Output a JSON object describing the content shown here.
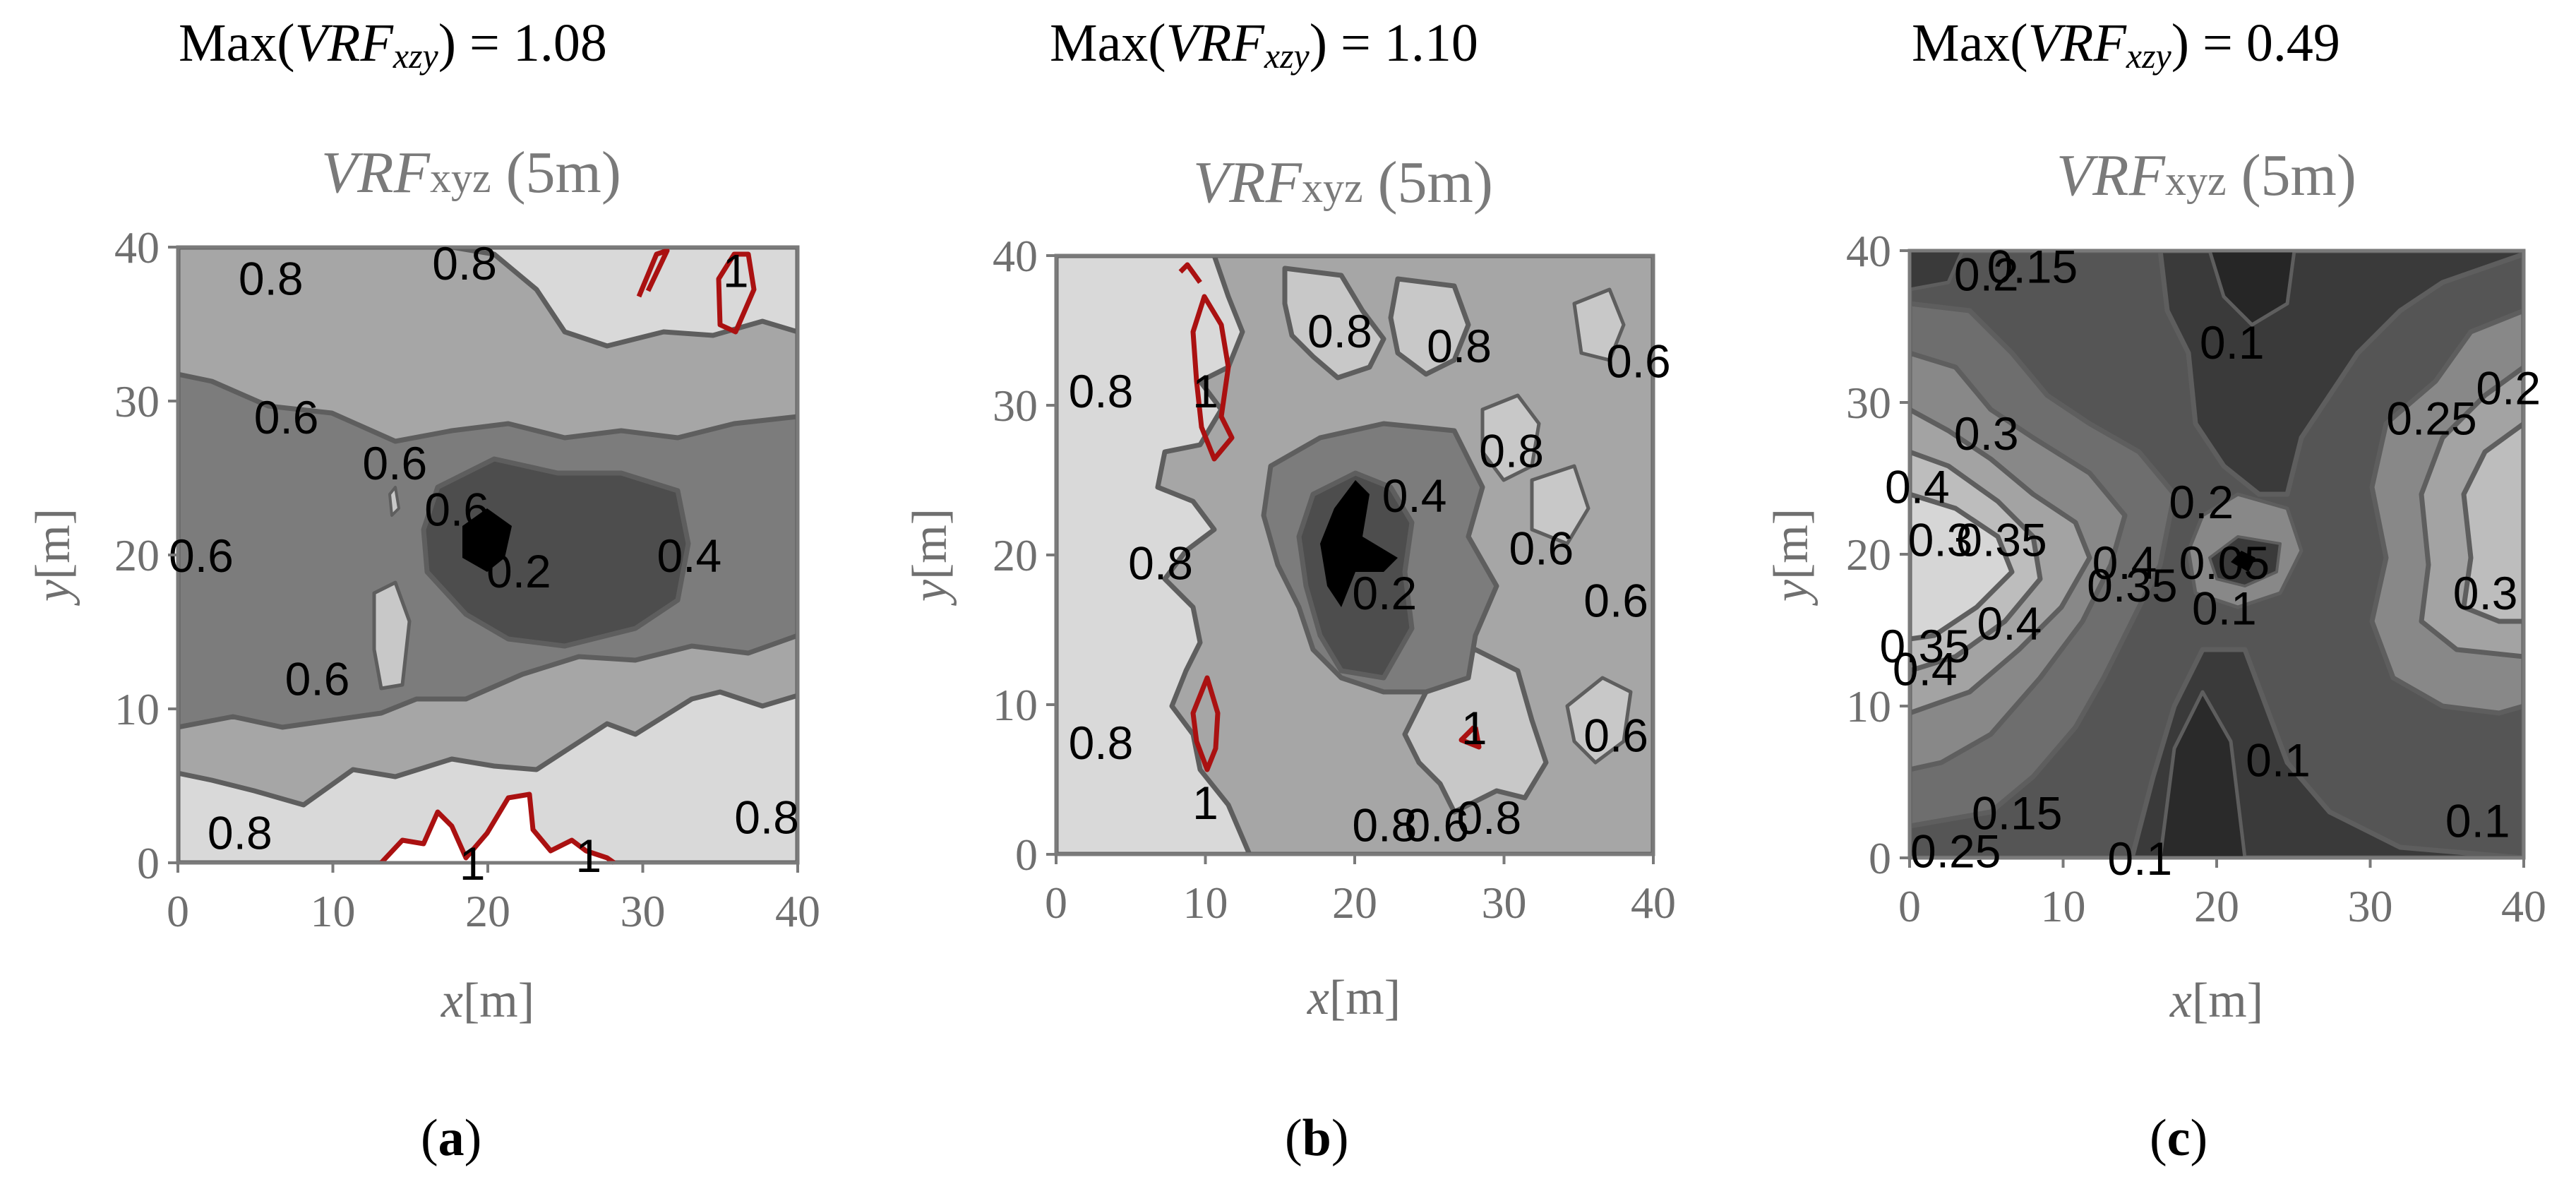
{
  "chart_data": [
    {
      "type": "contour",
      "header": {
        "prefix": "Max(",
        "var": "VRF",
        "sub": "xzy",
        "suffix": ") = 1.08"
      },
      "title": {
        "var": "VRF",
        "sub": "xyz",
        "tail": " (5m)"
      },
      "xlabel": {
        "var": "x",
        "unit": "[m]"
      },
      "ylabel": {
        "var": "y",
        "unit": "[m]"
      },
      "xlim": [
        0,
        40
      ],
      "ylim": [
        0,
        40
      ],
      "xticks": [
        "0",
        "10",
        "20",
        "30",
        "40"
      ],
      "yticks": [
        "0",
        "10",
        "20",
        "30",
        "40"
      ],
      "caption": "a",
      "critical_contour_color": "#aa1111",
      "contour_labels": [
        {
          "text": "0.8",
          "x": 6,
          "y": 38
        },
        {
          "text": "0.8",
          "x": 18.5,
          "y": 39
        },
        {
          "text": "1",
          "x": 36,
          "y": 38.5
        },
        {
          "text": "0.6",
          "x": 7,
          "y": 29
        },
        {
          "text": "0.6",
          "x": 14,
          "y": 26
        },
        {
          "text": "0.6",
          "x": 18,
          "y": 23
        },
        {
          "text": "0.6",
          "x": 1.5,
          "y": 20
        },
        {
          "text": "0.2",
          "x": 22,
          "y": 19
        },
        {
          "text": "0.4",
          "x": 33,
          "y": 20
        },
        {
          "text": "0.6",
          "x": 9,
          "y": 12
        },
        {
          "text": "0.8",
          "x": 4,
          "y": 2
        },
        {
          "text": "1",
          "x": 19,
          "y": 0
        },
        {
          "text": "1",
          "x": 26.5,
          "y": 0.5
        },
        {
          "text": "0.8",
          "x": 38,
          "y": 3
        }
      ]
    },
    {
      "type": "contour",
      "header": {
        "prefix": "Max(",
        "var": "VRF",
        "sub": "xzy",
        "suffix": ") = 1.10"
      },
      "title": {
        "var": "VRF",
        "sub": "xyz",
        "tail": " (5m)"
      },
      "xlabel": {
        "var": "x",
        "unit": "[m]"
      },
      "ylabel": {
        "var": "y",
        "unit": "[m]"
      },
      "xlim": [
        0,
        40
      ],
      "ylim": [
        0,
        40
      ],
      "xticks": [
        "0",
        "10",
        "20",
        "30",
        "40"
      ],
      "yticks": [
        "0",
        "10",
        "20",
        "30",
        "40"
      ],
      "caption": "b",
      "critical_contour_color": "#aa1111",
      "contour_labels": [
        {
          "text": "0.8",
          "x": 19,
          "y": 35
        },
        {
          "text": "0.8",
          "x": 27,
          "y": 34
        },
        {
          "text": "0.6",
          "x": 39,
          "y": 33
        },
        {
          "text": "0.8",
          "x": 3,
          "y": 31
        },
        {
          "text": "1",
          "x": 10,
          "y": 31
        },
        {
          "text": "0.8",
          "x": 30.5,
          "y": 27
        },
        {
          "text": "0.4",
          "x": 24,
          "y": 24
        },
        {
          "text": "0.6",
          "x": 32.5,
          "y": 20.5
        },
        {
          "text": "0.8",
          "x": 7,
          "y": 19.5
        },
        {
          "text": "0.2",
          "x": 22,
          "y": 17.5
        },
        {
          "text": "0.6",
          "x": 37.5,
          "y": 17
        },
        {
          "text": "1",
          "x": 28,
          "y": 8.5
        },
        {
          "text": "0.8",
          "x": 3,
          "y": 7.5
        },
        {
          "text": "0.6",
          "x": 37.5,
          "y": 8
        },
        {
          "text": "1",
          "x": 10,
          "y": 3.5
        },
        {
          "text": "0.8",
          "x": 22,
          "y": 2
        },
        {
          "text": "0.6",
          "x": 25.5,
          "y": 2
        },
        {
          "text": "0.8",
          "x": 29,
          "y": 2.5
        }
      ]
    },
    {
      "type": "contour",
      "header": {
        "prefix": "Max(",
        "var": "VRF",
        "sub": "xzy",
        "suffix": ") = 0.49"
      },
      "title": {
        "var": "VRF",
        "sub": "xyz",
        "tail": " (5m)"
      },
      "xlabel": {
        "var": "x",
        "unit": "[m]"
      },
      "ylabel": {
        "var": "y",
        "unit": "[m]"
      },
      "xlim": [
        0,
        40
      ],
      "ylim": [
        0,
        40
      ],
      "xticks": [
        "0",
        "10",
        "20",
        "30",
        "40"
      ],
      "yticks": [
        "0",
        "10",
        "20",
        "30",
        "40"
      ],
      "caption": "c",
      "contour_labels": [
        {
          "text": "0.2",
          "x": 5,
          "y": 38.5
        },
        {
          "text": "0.15",
          "x": 8,
          "y": 39
        },
        {
          "text": "0.1",
          "x": 21,
          "y": 34
        },
        {
          "text": "0.2",
          "x": 39,
          "y": 31
        },
        {
          "text": "0.25",
          "x": 34,
          "y": 29
        },
        {
          "text": "0.3",
          "x": 5,
          "y": 28
        },
        {
          "text": "0.4",
          "x": 0.5,
          "y": 24.5
        },
        {
          "text": "0.2",
          "x": 19,
          "y": 23.5
        },
        {
          "text": "0.3",
          "x": 2,
          "y": 21
        },
        {
          "text": "0.35",
          "x": 6,
          "y": 21
        },
        {
          "text": "0.4",
          "x": 14,
          "y": 19.5
        },
        {
          "text": "0.35",
          "x": 14.5,
          "y": 18
        },
        {
          "text": "0.05",
          "x": 20.5,
          "y": 19.5
        },
        {
          "text": "0.1",
          "x": 20.5,
          "y": 16.5
        },
        {
          "text": "0.3",
          "x": 37.5,
          "y": 17.5
        },
        {
          "text": "0.4",
          "x": 6.5,
          "y": 15.5
        },
        {
          "text": "0.35",
          "x": 1,
          "y": 14
        },
        {
          "text": "0.4",
          "x": 1,
          "y": 12.5
        },
        {
          "text": "0.1",
          "x": 24,
          "y": 6.5
        },
        {
          "text": "0.15",
          "x": 7,
          "y": 3
        },
        {
          "text": "0.1",
          "x": 37,
          "y": 2.5
        },
        {
          "text": "0.25",
          "x": 3,
          "y": 0.5
        },
        {
          "text": "0.1",
          "x": 15,
          "y": 0
        }
      ]
    }
  ]
}
